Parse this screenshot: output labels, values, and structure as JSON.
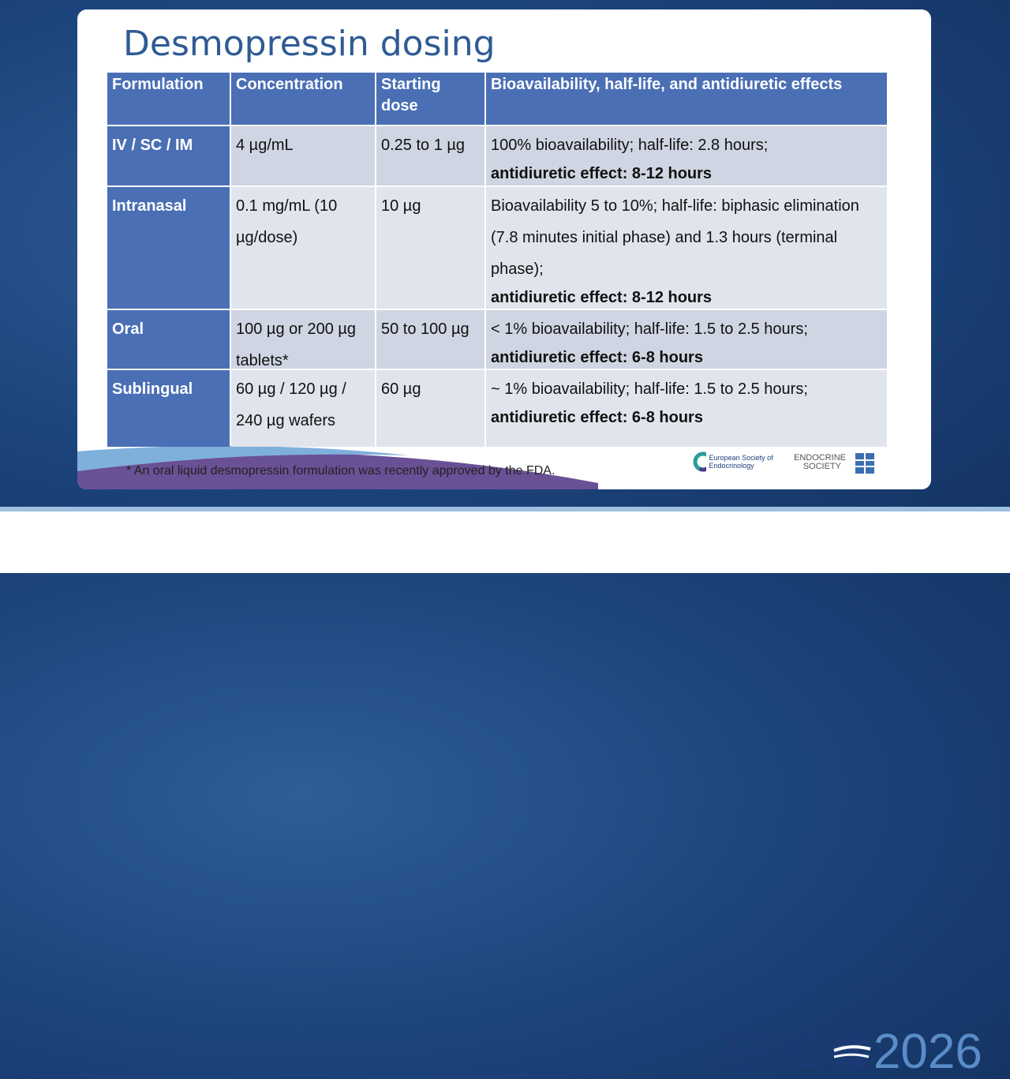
{
  "title": "Desmopressin dosing",
  "table": {
    "header": [
      "Formulation",
      "Concentration",
      "Starting dose",
      "Bioavailability, half-life, and antidiuretic effects"
    ],
    "rows": [
      [
        "IV / SC / IM",
        "4 µg/mL",
        "0.25 to 1 µg",
        {
          "text": "100% bioavailability; half-life: 2.8 hours;",
          "bold": "antidiuretic effect: 8-12 hours"
        }
      ],
      [
        "Intranasal",
        "0.1 mg/mL (10 µg/dose)",
        "10 µg",
        {
          "text": "Bioavailability 5 to 10%; half-life: biphasic elimination (7.8 minutes initial phase) and 1.3 hours (terminal phase);",
          "bold": "antidiuretic effect: 8-12 hours"
        }
      ],
      [
        "Oral",
        "100 µg or 200 µg tablets*",
        "50 to 100 µg",
        {
          "text": "< 1% bioavailability; half-life: 1.5 to 2.5 hours;",
          "bold": "antidiuretic effect: 6-8 hours"
        }
      ],
      [
        "Sublingual",
        "60 µg / 120 µg / 240 µg wafers",
        "60 µg",
        {
          "text": "~ 1% bioavailability; half-life: 1.5 to 2.5 hours;",
          "bold": "antidiuretic effect: 6-8 hours"
        }
      ]
    ]
  },
  "footnote": "* An oral liquid desmopressin formulation was recently approved by the FDA.",
  "logos": {
    "ese": "European Society of Endocrinology",
    "endocrine_society": "ENDOCRINE SOCIETY",
    "event_name": "END",
    "event_year": "2026"
  }
}
